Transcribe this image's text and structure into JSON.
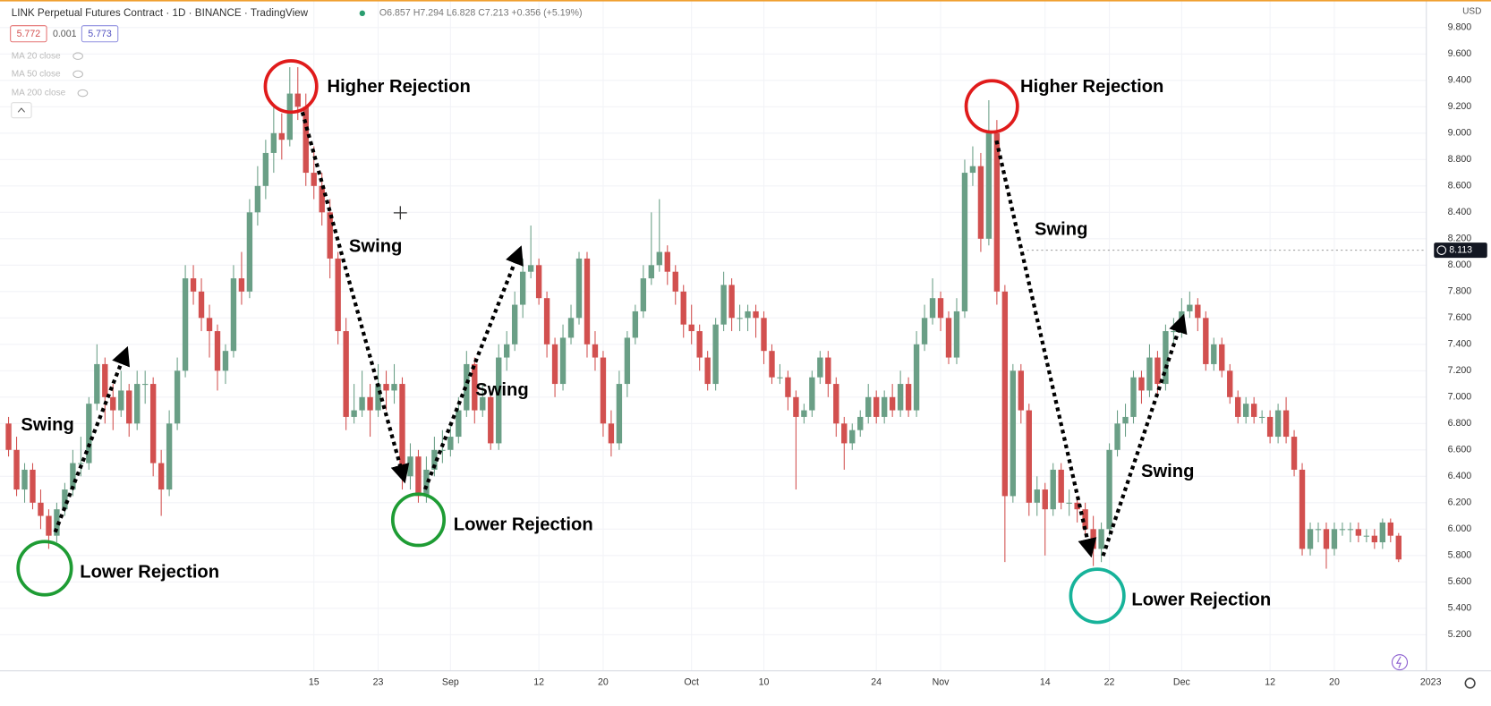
{
  "chart_data": {
    "type": "candlestick",
    "title": "LINK Perpetual Futures Contract · 1D · BINANCE · TradingView",
    "ohlc_legend": "O6.857 H7.294 L6.828 C7.213 +0.356 (+5.19%)",
    "price_boxes": [
      "5.772",
      "0.001",
      "5.773"
    ],
    "indicators": [
      "MA 20 close",
      "MA 50 close",
      "MA 200 close"
    ],
    "currency": "USD",
    "last_price": 8.113,
    "up_color": "#6a9f86",
    "down_color": "#d2504f",
    "ylim": [
      4.926,
      10.009
    ],
    "yticks": [
      {
        "value": 5.2,
        "label": "5.200"
      },
      {
        "value": 5.4,
        "label": "5.400"
      },
      {
        "value": 5.6,
        "label": "5.600"
      },
      {
        "value": 5.8,
        "label": "5.800"
      },
      {
        "value": 6.0,
        "label": "6.000"
      },
      {
        "value": 6.2,
        "label": "6.200"
      },
      {
        "value": 6.4,
        "label": "6.400"
      },
      {
        "value": 6.6,
        "label": "6.600"
      },
      {
        "value": 6.8,
        "label": "6.800"
      },
      {
        "value": 7.0,
        "label": "7.000"
      },
      {
        "value": 7.2,
        "label": "7.200"
      },
      {
        "value": 7.4,
        "label": "7.400"
      },
      {
        "value": 7.6,
        "label": "7.600"
      },
      {
        "value": 7.8,
        "label": "7.800"
      },
      {
        "value": 8.0,
        "label": "8.000"
      },
      {
        "value": 8.2,
        "label": "8.200"
      },
      {
        "value": 8.4,
        "label": "8.400"
      },
      {
        "value": 8.6,
        "label": "8.600"
      },
      {
        "value": 8.8,
        "label": "8.800"
      },
      {
        "value": 9.0,
        "label": "9.000"
      },
      {
        "value": 9.2,
        "label": "9.200"
      },
      {
        "value": 9.4,
        "label": "9.400"
      },
      {
        "value": 9.6,
        "label": "9.600"
      },
      {
        "value": 9.8,
        "label": "9.800"
      }
    ],
    "grid": true,
    "categories": [
      null,
      null,
      null,
      null,
      null,
      null,
      null,
      null,
      null,
      null,
      null,
      null,
      null,
      null,
      null,
      null,
      null,
      null,
      null,
      null,
      null,
      null,
      null,
      null,
      null,
      null,
      null,
      null,
      null,
      null,
      null,
      null,
      null,
      null,
      null,
      null,
      null,
      null,
      "15",
      null,
      null,
      null,
      null,
      null,
      null,
      null,
      "23",
      null,
      null,
      null,
      null,
      null,
      null,
      null,
      null,
      "Sep",
      null,
      null,
      null,
      null,
      null,
      null,
      null,
      null,
      null,
      null,
      "12",
      null,
      null,
      null,
      null,
      null,
      null,
      null,
      "20",
      null,
      null,
      null,
      null,
      null,
      null,
      null,
      null,
      null,
      null,
      "Oct",
      null,
      null,
      null,
      null,
      null,
      null,
      null,
      null,
      "10",
      null,
      null,
      null,
      null,
      null,
      null,
      null,
      null,
      null,
      null,
      null,
      null,
      null,
      "24",
      null,
      null,
      null,
      null,
      null,
      null,
      null,
      "Nov",
      null,
      null,
      null,
      null,
      null,
      null,
      null,
      null,
      null,
      null,
      null,
      null,
      "14",
      null,
      null,
      null,
      null,
      null,
      null,
      null,
      "22",
      null,
      null,
      null,
      null,
      null,
      null,
      null,
      null,
      "Dec",
      null,
      null,
      null,
      null,
      null,
      null,
      null,
      null,
      null,
      null,
      "12",
      null,
      null,
      null,
      null,
      null,
      null,
      null,
      "20",
      null,
      null,
      null,
      null,
      null,
      null,
      null,
      null,
      null,
      null,
      null,
      "2023"
    ],
    "candles": [
      [
        6.8,
        6.85,
        6.55,
        6.6
      ],
      [
        6.6,
        6.7,
        6.25,
        6.3
      ],
      [
        6.3,
        6.5,
        6.2,
        6.45
      ],
      [
        6.45,
        6.5,
        6.15,
        6.2
      ],
      [
        6.2,
        6.3,
        6.0,
        6.1
      ],
      [
        6.1,
        6.15,
        5.85,
        5.95
      ],
      [
        5.95,
        6.2,
        5.9,
        6.15
      ],
      [
        6.15,
        6.35,
        6.1,
        6.3
      ],
      [
        6.3,
        6.6,
        6.25,
        6.5
      ],
      [
        6.5,
        6.7,
        6.4,
        6.5
      ],
      [
        6.5,
        7.0,
        6.45,
        6.95
      ],
      [
        6.95,
        7.4,
        6.9,
        7.25
      ],
      [
        7.25,
        7.3,
        6.8,
        7.0
      ],
      [
        7.0,
        7.1,
        6.75,
        6.9
      ],
      [
        6.9,
        7.2,
        6.85,
        7.05
      ],
      [
        7.05,
        7.1,
        6.7,
        6.8
      ],
      [
        6.8,
        7.2,
        6.75,
        7.1
      ],
      [
        7.1,
        7.2,
        6.95,
        7.1
      ],
      [
        7.1,
        7.15,
        6.4,
        6.5
      ],
      [
        6.5,
        6.6,
        6.1,
        6.3
      ],
      [
        6.3,
        6.9,
        6.25,
        6.8
      ],
      [
        6.8,
        7.3,
        6.75,
        7.2
      ],
      [
        7.2,
        8.0,
        7.15,
        7.9
      ],
      [
        7.9,
        8.0,
        7.7,
        7.8
      ],
      [
        7.8,
        7.9,
        7.5,
        7.6
      ],
      [
        7.6,
        7.7,
        7.3,
        7.5
      ],
      [
        7.5,
        7.55,
        7.05,
        7.2
      ],
      [
        7.2,
        7.4,
        7.1,
        7.35
      ],
      [
        7.35,
        8.0,
        7.3,
        7.9
      ],
      [
        7.9,
        8.1,
        7.7,
        7.8
      ],
      [
        7.8,
        8.5,
        7.75,
        8.4
      ],
      [
        8.4,
        8.75,
        8.3,
        8.6
      ],
      [
        8.6,
        8.95,
        8.5,
        8.85
      ],
      [
        8.85,
        9.2,
        8.7,
        9.0
      ],
      [
        9.0,
        9.15,
        8.8,
        8.95
      ],
      [
        8.95,
        9.5,
        8.9,
        9.3
      ],
      [
        9.3,
        9.5,
        9.1,
        9.2
      ],
      [
        9.2,
        9.3,
        8.6,
        8.7
      ],
      [
        8.7,
        8.9,
        8.5,
        8.6
      ],
      [
        8.6,
        8.7,
        8.3,
        8.4
      ],
      [
        8.4,
        8.5,
        7.9,
        8.05
      ],
      [
        8.05,
        8.1,
        7.4,
        7.5
      ],
      [
        7.5,
        7.6,
        6.75,
        6.85
      ],
      [
        6.85,
        7.1,
        6.8,
        6.9
      ],
      [
        6.9,
        7.2,
        6.85,
        7.0
      ],
      [
        7.0,
        7.1,
        6.7,
        6.9
      ],
      [
        6.9,
        7.25,
        6.85,
        7.1
      ],
      [
        7.1,
        7.2,
        6.9,
        7.05
      ],
      [
        7.05,
        7.25,
        6.95,
        7.1
      ],
      [
        7.1,
        7.15,
        6.3,
        6.4
      ],
      [
        6.4,
        6.65,
        6.3,
        6.55
      ],
      [
        6.55,
        6.6,
        6.2,
        6.25
      ],
      [
        6.25,
        6.55,
        6.2,
        6.45
      ],
      [
        6.45,
        6.7,
        6.4,
        6.6
      ],
      [
        6.6,
        6.75,
        6.5,
        6.6
      ],
      [
        6.6,
        6.8,
        6.55,
        6.7
      ],
      [
        6.7,
        7.0,
        6.65,
        6.9
      ],
      [
        6.9,
        7.35,
        6.85,
        7.25
      ],
      [
        7.25,
        7.3,
        6.8,
        6.9
      ],
      [
        6.9,
        7.1,
        6.85,
        7.0
      ],
      [
        7.0,
        7.05,
        6.6,
        6.65
      ],
      [
        6.65,
        7.4,
        6.6,
        7.3
      ],
      [
        7.3,
        7.5,
        7.2,
        7.4
      ],
      [
        7.4,
        7.8,
        7.35,
        7.7
      ],
      [
        7.7,
        8.05,
        7.6,
        7.95
      ],
      [
        7.95,
        8.3,
        7.9,
        8.0
      ],
      [
        8.0,
        8.05,
        7.7,
        7.75
      ],
      [
        7.75,
        7.8,
        7.3,
        7.4
      ],
      [
        7.4,
        7.45,
        7.0,
        7.1
      ],
      [
        7.1,
        7.55,
        7.05,
        7.45
      ],
      [
        7.45,
        7.7,
        7.4,
        7.6
      ],
      [
        7.6,
        8.1,
        7.55,
        8.05
      ],
      [
        8.05,
        8.1,
        7.3,
        7.4
      ],
      [
        7.4,
        7.5,
        7.2,
        7.3
      ],
      [
        7.3,
        7.35,
        6.7,
        6.8
      ],
      [
        6.8,
        6.9,
        6.55,
        6.65
      ],
      [
        6.65,
        7.2,
        6.6,
        7.1
      ],
      [
        7.1,
        7.5,
        7.0,
        7.45
      ],
      [
        7.45,
        7.7,
        7.4,
        7.65
      ],
      [
        7.65,
        8.0,
        7.6,
        7.9
      ],
      [
        7.9,
        8.4,
        7.85,
        8.0
      ],
      [
        8.0,
        8.5,
        7.95,
        8.1
      ],
      [
        8.1,
        8.15,
        7.85,
        7.95
      ],
      [
        7.95,
        8.0,
        7.7,
        7.8
      ],
      [
        7.8,
        7.85,
        7.45,
        7.55
      ],
      [
        7.55,
        7.7,
        7.4,
        7.5
      ],
      [
        7.5,
        7.55,
        7.2,
        7.3
      ],
      [
        7.3,
        7.35,
        7.05,
        7.1
      ],
      [
        7.1,
        7.6,
        7.05,
        7.55
      ],
      [
        7.55,
        7.95,
        7.5,
        7.85
      ],
      [
        7.85,
        7.9,
        7.5,
        7.6
      ],
      [
        7.6,
        7.7,
        7.5,
        7.6
      ],
      [
        7.6,
        7.7,
        7.5,
        7.65
      ],
      [
        7.65,
        7.7,
        7.45,
        7.6
      ],
      [
        7.6,
        7.65,
        7.25,
        7.35
      ],
      [
        7.35,
        7.4,
        7.1,
        7.15
      ],
      [
        7.15,
        7.25,
        7.1,
        7.15
      ],
      [
        7.15,
        7.2,
        6.9,
        7.0
      ],
      [
        7.0,
        7.05,
        6.3,
        6.85
      ],
      [
        6.85,
        6.95,
        6.8,
        6.9
      ],
      [
        6.9,
        7.2,
        6.85,
        7.15
      ],
      [
        7.15,
        7.35,
        7.1,
        7.3
      ],
      [
        7.3,
        7.35,
        7.0,
        7.1
      ],
      [
        7.1,
        7.15,
        6.7,
        6.8
      ],
      [
        6.8,
        6.85,
        6.45,
        6.65
      ],
      [
        6.65,
        6.8,
        6.6,
        6.75
      ],
      [
        6.75,
        6.9,
        6.7,
        6.85
      ],
      [
        6.85,
        7.1,
        6.8,
        7.0
      ],
      [
        7.0,
        7.05,
        6.8,
        6.85
      ],
      [
        6.85,
        7.05,
        6.8,
        7.0
      ],
      [
        7.0,
        7.1,
        6.85,
        6.9
      ],
      [
        6.9,
        7.2,
        6.85,
        7.1
      ],
      [
        7.1,
        7.15,
        6.85,
        6.9
      ],
      [
        6.9,
        7.5,
        6.85,
        7.4
      ],
      [
        7.4,
        7.7,
        7.35,
        7.6
      ],
      [
        7.6,
        7.9,
        7.55,
        7.75
      ],
      [
        7.75,
        7.8,
        7.5,
        7.6
      ],
      [
        7.6,
        7.65,
        7.25,
        7.3
      ],
      [
        7.3,
        7.75,
        7.25,
        7.65
      ],
      [
        7.65,
        8.8,
        7.6,
        8.7
      ],
      [
        8.7,
        8.9,
        8.6,
        8.75
      ],
      [
        8.75,
        8.85,
        8.1,
        8.2
      ],
      [
        8.2,
        9.25,
        8.15,
        9.0
      ],
      [
        9.0,
        9.1,
        7.7,
        7.8
      ],
      [
        7.8,
        7.85,
        5.75,
        6.25
      ],
      [
        6.25,
        7.25,
        6.2,
        7.2
      ],
      [
        7.2,
        7.25,
        6.8,
        6.9
      ],
      [
        6.9,
        6.95,
        6.1,
        6.2
      ],
      [
        6.2,
        6.4,
        6.1,
        6.3
      ],
      [
        6.3,
        6.35,
        5.8,
        6.15
      ],
      [
        6.15,
        6.5,
        6.1,
        6.45
      ],
      [
        6.45,
        6.5,
        6.15,
        6.2
      ],
      [
        6.2,
        6.3,
        6.1,
        6.2
      ],
      [
        6.2,
        6.25,
        6.05,
        6.15
      ],
      [
        6.15,
        6.2,
        5.95,
        6.0
      ],
      [
        6.0,
        6.1,
        5.72,
        5.85
      ],
      [
        5.85,
        6.05,
        5.75,
        6.0
      ],
      [
        6.0,
        6.65,
        5.95,
        6.6
      ],
      [
        6.6,
        6.9,
        6.55,
        6.8
      ],
      [
        6.8,
        6.95,
        6.7,
        6.85
      ],
      [
        6.85,
        7.2,
        6.8,
        7.15
      ],
      [
        7.15,
        7.2,
        6.95,
        7.05
      ],
      [
        7.05,
        7.4,
        7.0,
        7.3
      ],
      [
        7.3,
        7.35,
        7.0,
        7.1
      ],
      [
        7.1,
        7.55,
        7.05,
        7.5
      ],
      [
        7.5,
        7.6,
        7.4,
        7.5
      ],
      [
        7.5,
        7.75,
        7.45,
        7.65
      ],
      [
        7.65,
        7.8,
        7.6,
        7.7
      ],
      [
        7.7,
        7.75,
        7.5,
        7.6
      ],
      [
        7.6,
        7.65,
        7.2,
        7.25
      ],
      [
        7.25,
        7.45,
        7.2,
        7.4
      ],
      [
        7.4,
        7.45,
        7.15,
        7.2
      ],
      [
        7.2,
        7.25,
        6.95,
        7.0
      ],
      [
        7.0,
        7.05,
        6.8,
        6.85
      ],
      [
        6.85,
        7.0,
        6.8,
        6.95
      ],
      [
        6.95,
        7.0,
        6.8,
        6.85
      ],
      [
        6.85,
        6.9,
        6.8,
        6.85
      ],
      [
        6.85,
        6.9,
        6.65,
        6.7
      ],
      [
        6.7,
        6.95,
        6.65,
        6.9
      ],
      [
        6.9,
        7.0,
        6.65,
        6.7
      ],
      [
        6.7,
        6.75,
        6.4,
        6.45
      ],
      [
        6.45,
        6.5,
        5.8,
        5.85
      ],
      [
        5.85,
        6.05,
        5.8,
        6.0
      ],
      [
        6.0,
        6.05,
        5.9,
        6.0
      ],
      [
        6.0,
        6.05,
        5.7,
        5.85
      ],
      [
        5.85,
        6.05,
        5.8,
        6.0
      ],
      [
        6.0,
        6.05,
        5.95,
        6.0
      ],
      [
        6.0,
        6.05,
        5.9,
        6.0
      ],
      [
        6.0,
        6.05,
        5.9,
        5.95
      ],
      [
        5.95,
        6.0,
        5.9,
        5.95
      ],
      [
        5.95,
        6.0,
        5.85,
        5.9
      ],
      [
        5.9,
        6.08,
        5.85,
        6.05
      ],
      [
        6.05,
        6.08,
        5.9,
        5.95
      ],
      [
        5.95,
        5.97,
        5.75,
        5.77
      ],
      null,
      null,
      null,
      null
    ],
    "annotations": [
      "Higher Rejection",
      "Higher Rejection",
      "Swing",
      "Swing",
      "Swing",
      "Swing",
      "Swing",
      "Lower Rejection",
      "Lower Rejection",
      "Lower Rejection"
    ]
  }
}
